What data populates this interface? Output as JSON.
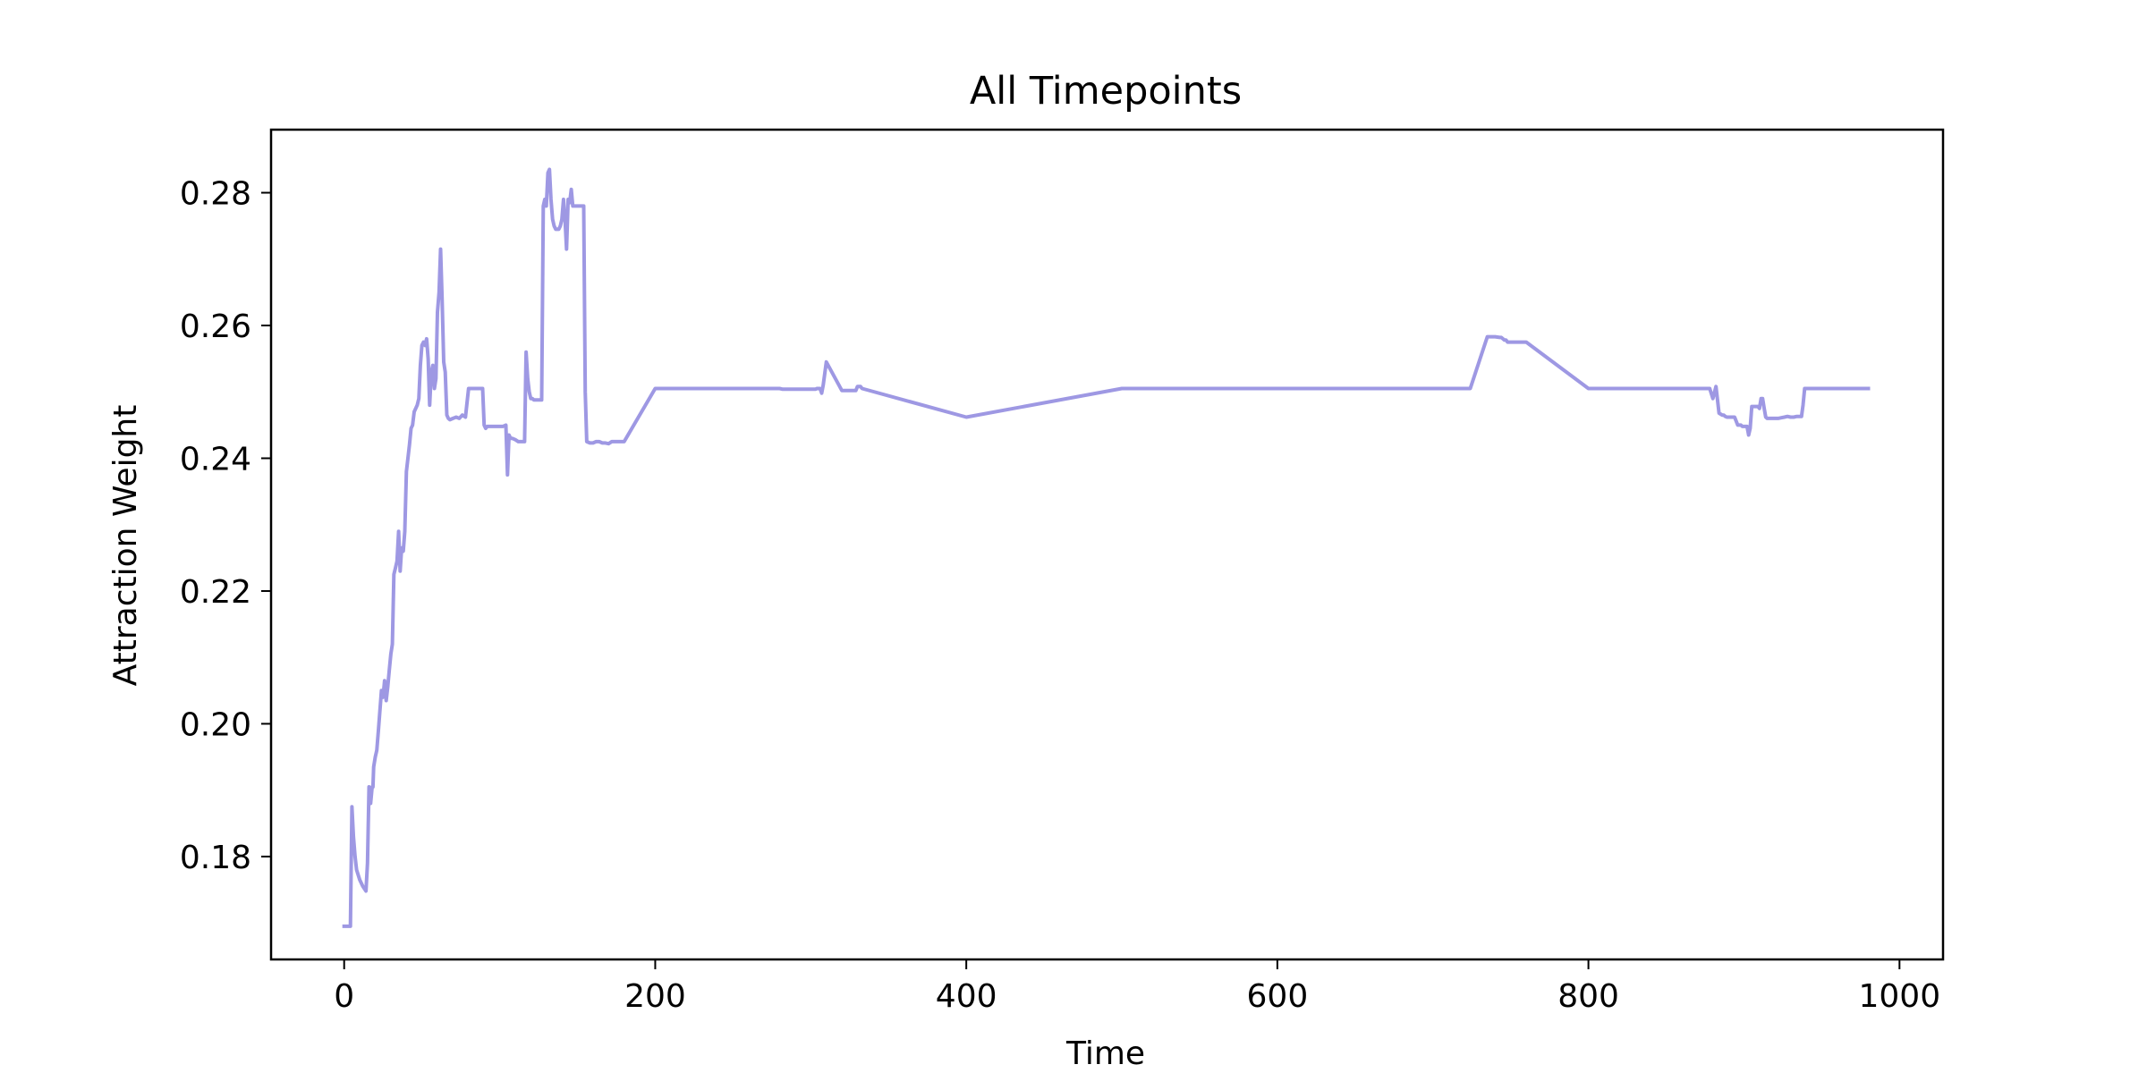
{
  "chart_data": {
    "type": "line",
    "title": "All Timepoints",
    "xlabel": "Time",
    "ylabel": "Attraction Weight",
    "xlim": [
      -47,
      1028
    ],
    "ylim": [
      0.1645,
      0.2895
    ],
    "xticks": [
      0,
      200,
      400,
      600,
      800,
      1000
    ],
    "xtick_labels": [
      "0",
      "200",
      "400",
      "600",
      "800",
      "1000"
    ],
    "yticks": [
      0.18,
      0.2,
      0.22,
      0.24,
      0.26,
      0.28
    ],
    "ytick_labels": [
      "0.18",
      "0.20",
      "0.22",
      "0.24",
      "0.26",
      "0.28"
    ],
    "grid": false,
    "legend": "none",
    "line_color": "#9e98e3",
    "series": [
      {
        "x": [
          0,
          4,
          5,
          6,
          7,
          8,
          10,
          12,
          14,
          15,
          16,
          17,
          18,
          18.5,
          19,
          20,
          21,
          22,
          24,
          25,
          26,
          27,
          28,
          29,
          30,
          31,
          32,
          33,
          34,
          35,
          36,
          37,
          38,
          39,
          40,
          41,
          42,
          43,
          44,
          45,
          46,
          47,
          48,
          49,
          50,
          51,
          52,
          53,
          54,
          55,
          56,
          57,
          58,
          59,
          60,
          61,
          62,
          63,
          64,
          65,
          66,
          67,
          68,
          70,
          72,
          74,
          76,
          78,
          80,
          81,
          82,
          83,
          85,
          87,
          89,
          90,
          91,
          92,
          95,
          98,
          100,
          102,
          104,
          105,
          106,
          107,
          108,
          110,
          112,
          114,
          116,
          117,
          118,
          119,
          120,
          121,
          122,
          123,
          124,
          125,
          126,
          127,
          128,
          129,
          130,
          131,
          132,
          133,
          134,
          135,
          136,
          137,
          138,
          139,
          140,
          141,
          142,
          143,
          144,
          145,
          146,
          147,
          148,
          149,
          150,
          151,
          152,
          153,
          154,
          155,
          156,
          158,
          160,
          162,
          164,
          166,
          168,
          170,
          172,
          174,
          176,
          177,
          178,
          179,
          180,
          200,
          260,
          262,
          280,
          282,
          300,
          302,
          303,
          304,
          305,
          306,
          307,
          308,
          310,
          320,
          325,
          326,
          327,
          328,
          329,
          330,
          331,
          332,
          333,
          400,
          500,
          600,
          700,
          718,
          720,
          721,
          724,
          735,
          736,
          740,
          743,
          744,
          745,
          746,
          747,
          748,
          760,
          800,
          850,
          870,
          872,
          874,
          875,
          876,
          877,
          878,
          880,
          882,
          884,
          886,
          887,
          888,
          889,
          890,
          891,
          892,
          893,
          894,
          896,
          898,
          899,
          900,
          901,
          902,
          903,
          904,
          905,
          906,
          907,
          908,
          909,
          910,
          911,
          912,
          913,
          914,
          915,
          916,
          918,
          920,
          922,
          924,
          926,
          928,
          930,
          932,
          934,
          936,
          937,
          938,
          939,
          940,
          941,
          942,
          945,
          950,
          960,
          970,
          980
        ],
        "y": [
          0.1695,
          0.1695,
          0.1875,
          0.183,
          0.18,
          0.178,
          0.1765,
          0.1755,
          0.1748,
          0.179,
          0.1905,
          0.188,
          0.1905,
          0.1905,
          0.1935,
          0.195,
          0.196,
          0.199,
          0.205,
          0.204,
          0.2065,
          0.2035,
          0.2055,
          0.208,
          0.2105,
          0.212,
          0.2225,
          0.2235,
          0.2245,
          0.229,
          0.223,
          0.2265,
          0.226,
          0.229,
          0.238,
          0.24,
          0.242,
          0.2445,
          0.245,
          0.247,
          0.2475,
          0.248,
          0.249,
          0.254,
          0.257,
          0.2575,
          0.257,
          0.258,
          0.255,
          0.248,
          0.253,
          0.254,
          0.2505,
          0.252,
          0.262,
          0.265,
          0.2715,
          0.264,
          0.2545,
          0.253,
          0.2465,
          0.246,
          0.2458,
          0.246,
          0.2462,
          0.246,
          0.2465,
          0.2462,
          0.2505,
          0.2505,
          0.2505,
          0.2505,
          0.2505,
          0.2505,
          0.2505,
          0.245,
          0.2445,
          0.2448,
          0.2448,
          0.2448,
          0.2448,
          0.2448,
          0.245,
          0.2375,
          0.2435,
          0.243,
          0.243,
          0.2428,
          0.2425,
          0.2425,
          0.2425,
          0.256,
          0.252,
          0.25,
          0.249,
          0.249,
          0.2488,
          0.2488,
          0.2488,
          0.2488,
          0.2488,
          0.2488,
          0.278,
          0.279,
          0.278,
          0.283,
          0.2835,
          0.279,
          0.276,
          0.275,
          0.2745,
          0.2745,
          0.2745,
          0.275,
          0.276,
          0.279,
          0.276,
          0.2715,
          0.279,
          0.2785,
          0.2805,
          0.278,
          0.278,
          0.278,
          0.278,
          0.278,
          0.278,
          0.278,
          0.278,
          0.25,
          0.2425,
          0.2423,
          0.2423,
          0.2425,
          0.2425,
          0.2423,
          0.2423,
          0.2422,
          0.2425,
          0.2425,
          0.2425,
          0.2425,
          0.2425,
          0.2425,
          0.2425,
          0.2505,
          0.2505,
          0.2505,
          0.2505,
          0.2504,
          0.2504,
          0.2504,
          0.2504,
          0.2505,
          0.2505,
          0.2505,
          0.2498,
          0.251,
          0.2545,
          0.2502,
          0.2502,
          0.2502,
          0.2502,
          0.2502,
          0.2502,
          0.2508,
          0.2508,
          0.2508,
          0.2505,
          0.2462,
          0.2505,
          0.2505,
          0.2505,
          0.2505,
          0.2505,
          0.2505,
          0.2505,
          0.2583,
          0.2583,
          0.2583,
          0.2582,
          0.2582,
          0.258,
          0.2578,
          0.2578,
          0.2575,
          0.2575,
          0.2505,
          0.2505,
          0.2505,
          0.2505,
          0.2505,
          0.2505,
          0.2505,
          0.2505,
          0.2505,
          0.249,
          0.2508,
          0.2468,
          0.2465,
          0.2465,
          0.2463,
          0.2462,
          0.2462,
          0.2462,
          0.2462,
          0.2462,
          0.2462,
          0.245,
          0.245,
          0.2448,
          0.2448,
          0.2448,
          0.2448,
          0.2435,
          0.2445,
          0.2478,
          0.2478,
          0.2478,
          0.2478,
          0.2478,
          0.2475,
          0.249,
          0.249,
          0.2475,
          0.2462,
          0.246,
          0.246,
          0.246,
          0.246,
          0.246,
          0.2461,
          0.2462,
          0.2463,
          0.2462,
          0.2462,
          0.2463,
          0.2463,
          0.2463,
          0.248,
          0.2505,
          0.2505,
          0.2505,
          0.2505,
          0.2505,
          0.2505,
          0.2505,
          0.2505,
          0.2505
        ]
      }
    ]
  }
}
